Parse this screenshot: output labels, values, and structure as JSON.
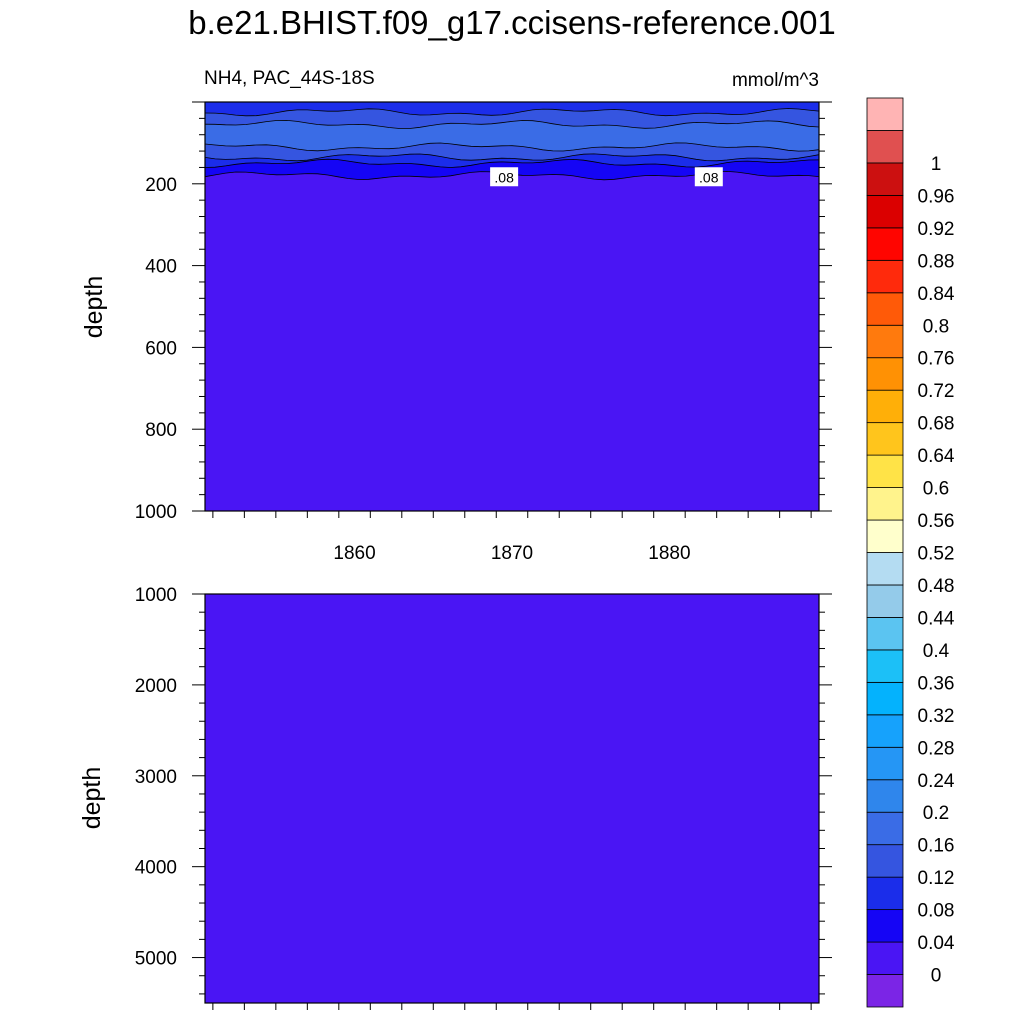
{
  "chart_data": {
    "type": "heatmap",
    "title": "b.e21.BHIST.f09_g17.ccisens-reference.001",
    "variable": "NH4, PAC_44S-18S",
    "units": "mmol/m^3",
    "colorbar": {
      "labels": [
        "1",
        "0.96",
        "0.92",
        "0.88",
        "0.84",
        "0.8",
        "0.76",
        "0.72",
        "0.68",
        "0.64",
        "0.6",
        "0.56",
        "0.52",
        "0.48",
        "0.44",
        "0.4",
        "0.36",
        "0.32",
        "0.28",
        "0.24",
        "0.2",
        "0.16",
        "0.12",
        "0.08",
        "0.04",
        "0"
      ],
      "levels": [
        0,
        0.04,
        0.08,
        0.12,
        0.16,
        0.2,
        0.24,
        0.28,
        0.32,
        0.36,
        0.4,
        0.44,
        0.48,
        0.52,
        0.56,
        0.6,
        0.64,
        0.68,
        0.72,
        0.76,
        0.8,
        0.84,
        0.88,
        0.92,
        0.96,
        1
      ],
      "colors": [
        "#7b25e6",
        "#4a15f4",
        "#1505f5",
        "#1b2dea",
        "#3555e0",
        "#3a6ce6",
        "#2f86ec",
        "#2596f5",
        "#16a2fc",
        "#04b2fd",
        "#1cc0f7",
        "#5bc4f1",
        "#94cbea",
        "#b4dcf2",
        "#ffffcc",
        "#fff38c",
        "#ffe347",
        "#ffc51c",
        "#ffaf08",
        "#ff9104",
        "#ff7a0d",
        "#ff5a08",
        "#ff2a0c",
        "#ff0500",
        "#db0000",
        "#cc1010",
        "#e05050",
        "#ffb4b4"
      ]
    },
    "x": {
      "range": [
        1850.5,
        1889.5
      ],
      "ticks": [
        1860,
        1870,
        1880
      ],
      "tick_labels": [
        "1860",
        "1870",
        "1880"
      ]
    },
    "panels": [
      {
        "ylabel": "depth",
        "ylim": [
          0,
          1000
        ],
        "yticks": [
          200,
          400,
          600,
          800,
          1000
        ],
        "ytick_labels": [
          "200",
          "400",
          "600",
          "800",
          "1000"
        ],
        "bands": [
          {
            "from_depth": 0,
            "to_depth": 25,
            "value_range": [
              0.08,
              0.12
            ]
          },
          {
            "from_depth": 25,
            "to_depth": 55,
            "value_range": [
              0.12,
              0.16
            ]
          },
          {
            "from_depth": 55,
            "to_depth": 110,
            "value_range": [
              0.16,
              0.2
            ]
          },
          {
            "from_depth": 110,
            "to_depth": 135,
            "value_range": [
              0.12,
              0.16
            ]
          },
          {
            "from_depth": 135,
            "to_depth": 150,
            "value_range": [
              0.08,
              0.12
            ]
          },
          {
            "from_depth": 150,
            "to_depth": 180,
            "value_range": [
              0.04,
              0.08
            ]
          },
          {
            "from_depth": 180,
            "to_depth": 1000,
            "value_range": [
              0,
              0.04
            ]
          }
        ],
        "contour_labels": [
          {
            "text": ".08",
            "x": 1869.5,
            "depth": 140
          },
          {
            "text": ".08",
            "x": 1882.5,
            "depth": 140
          }
        ]
      },
      {
        "ylabel": "depth",
        "ylim": [
          1000,
          5500
        ],
        "yticks": [
          1000,
          2000,
          3000,
          4000,
          5000
        ],
        "ytick_labels": [
          "1000",
          "2000",
          "3000",
          "4000",
          "5000"
        ],
        "bands": [
          {
            "from_depth": 1000,
            "to_depth": 5500,
            "value_range": [
              0,
              0.04
            ]
          }
        ]
      }
    ]
  }
}
